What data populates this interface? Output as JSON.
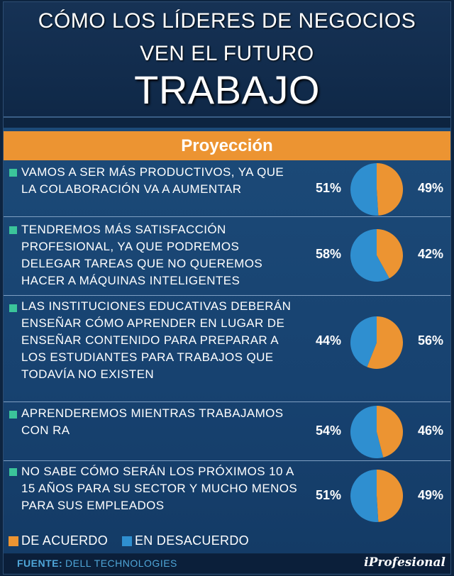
{
  "header": {
    "title_line1": "CÓMO LOS LÍDERES DE NEGOCIOS",
    "title_line2": "VEN EL FUTURO",
    "title_line3": "TRABAJO"
  },
  "banner": "Proyección",
  "colors": {
    "agree": "#ec9432",
    "disagree": "#2f8fd0",
    "accent_bullet": "#3bc49a",
    "background": "#0d2440"
  },
  "chart_data": {
    "type": "pie",
    "series_names": [
      "DE ACUERDO",
      "EN DESACUERDO"
    ],
    "items": [
      {
        "statement": "VAMOS A SER MÁS PRODUCTIVOS, YA QUE LA COLABORACIÓN VA A AUMENTAR",
        "disagree_label": "51%",
        "agree_label": "49%",
        "disagree": 51,
        "agree": 49
      },
      {
        "statement": "TENDREMOS MÁS SATISFACCIÓN PROFESIONAL, YA QUE PODREMOS DELEGAR TAREAS QUE NO QUEREMOS HACER A MÁQUINAS INTELIGENTES",
        "disagree_label": "58%",
        "agree_label": "42%",
        "disagree": 58,
        "agree": 42
      },
      {
        "statement": "LAS INSTITUCIONES EDUCATIVAS DEBERÁN ENSEÑAR CÓMO APRENDER EN LUGAR DE ENSEÑAR CONTENIDO PARA PREPARAR A LOS ESTUDIANTES PARA TRABAJOS QUE TODAVÍA NO EXISTEN",
        "disagree_label": "44%",
        "agree_label": "56%",
        "disagree": 44,
        "agree": 56
      },
      {
        "statement": "APRENDEREMOS MIENTRAS TRABAJAMOS CON RA",
        "disagree_label": "54%",
        "agree_label": "46%",
        "disagree": 54,
        "agree": 46
      },
      {
        "statement": "NO SABE CÓMO SERÁN LOS PRÓXIMOS 10 A 15 AÑOS PARA SU SECTOR Y MUCHO MENOS PARA SUS EMPLEADOS",
        "disagree_label": "51%",
        "agree_label": "49%",
        "disagree": 51,
        "agree": 49
      }
    ]
  },
  "legend": {
    "agree_label": "DE ACUERDO",
    "disagree_label": "EN DESACUERDO"
  },
  "footer": {
    "source_label": "FUENTE:",
    "source_value": "DELL TECHNOLOGIES",
    "brand": "iProfesional"
  }
}
